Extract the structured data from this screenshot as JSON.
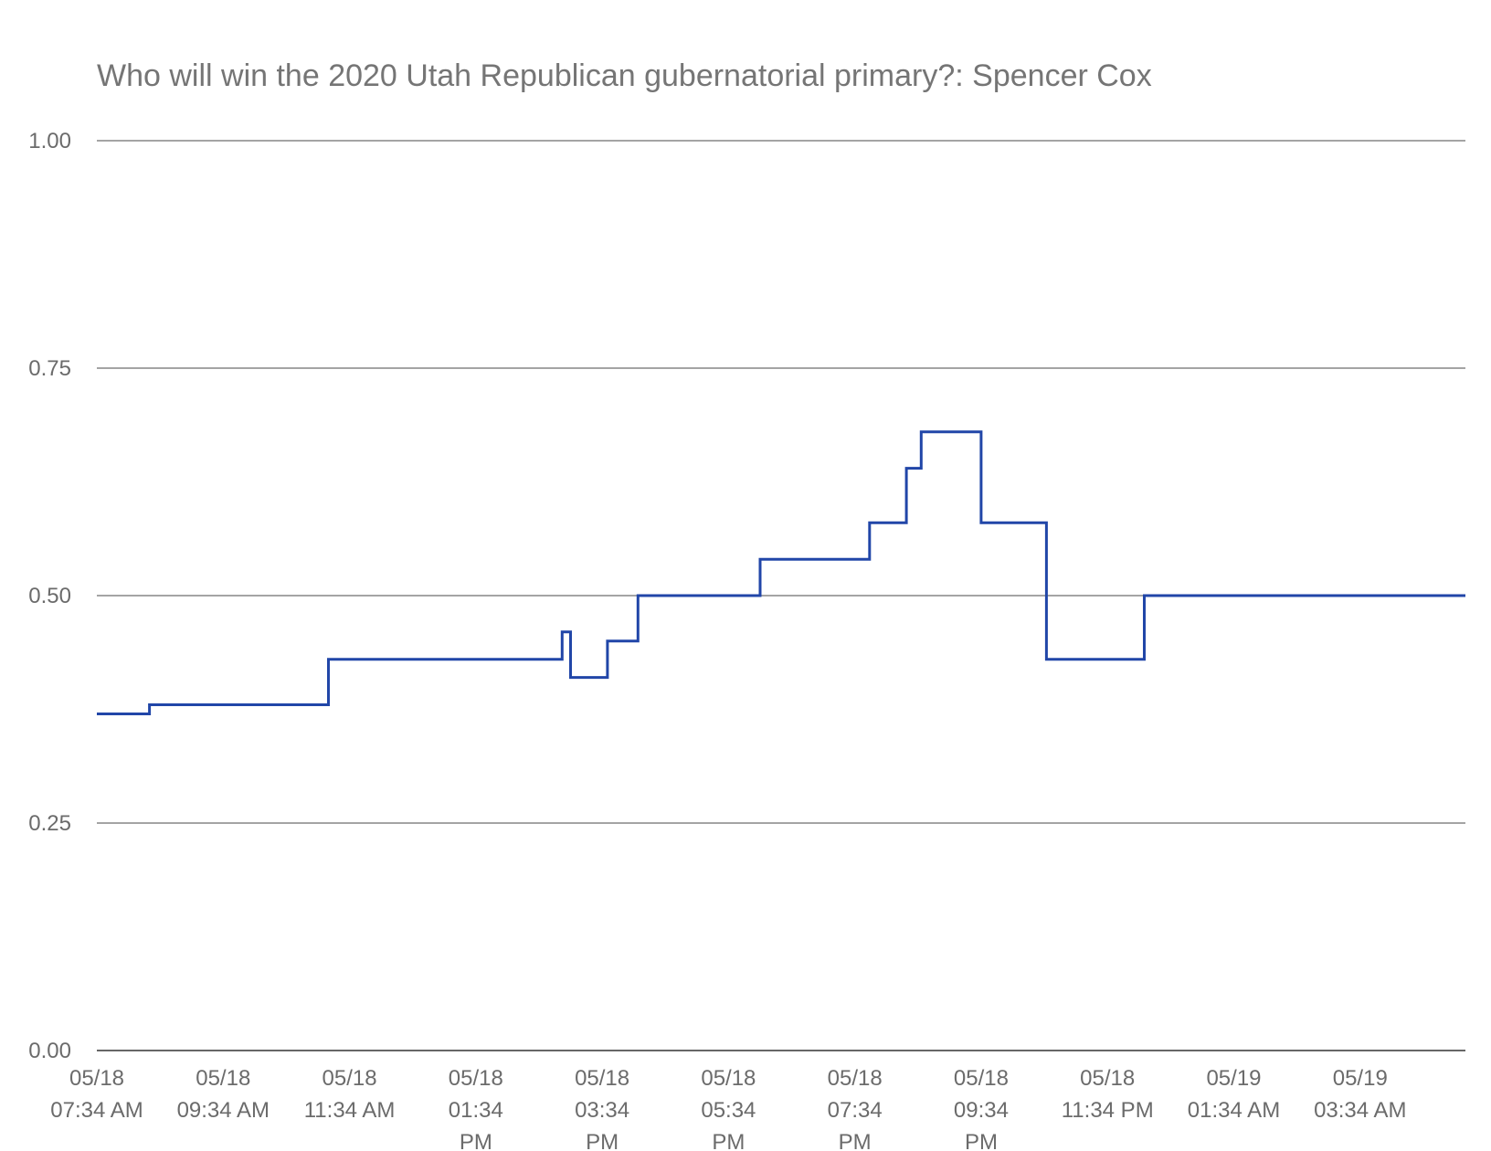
{
  "chart_data": {
    "type": "line",
    "title": "Who will win the 2020 Utah Republican gubernatorial primary?: Spencer Cox",
    "xlabel": "",
    "ylabel": "",
    "ylim": [
      0,
      1
    ],
    "grid": true,
    "legend": "none",
    "line_style": "step",
    "colors": {
      "series": "#2146a8",
      "grid": "#6e6e6e",
      "tick_text": "#6b6b6b",
      "title_text": "#757575"
    },
    "y_ticks": [
      {
        "value": 0.0,
        "label": "0.00"
      },
      {
        "value": 0.25,
        "label": "0.25"
      },
      {
        "value": 0.5,
        "label": "0.50"
      },
      {
        "value": 0.75,
        "label": "0.75"
      },
      {
        "value": 1.0,
        "label": "1.00"
      }
    ],
    "x_range": [
      "05/18 07:34",
      "05/19 05:14"
    ],
    "x_ticks": [
      {
        "time": "05/18 07:34",
        "lines": [
          "05/18",
          "07:34 AM"
        ]
      },
      {
        "time": "05/18 09:34",
        "lines": [
          "05/18",
          "09:34 AM"
        ]
      },
      {
        "time": "05/18 11:34",
        "lines": [
          "05/18",
          "11:34 AM"
        ]
      },
      {
        "time": "05/18 13:34",
        "lines": [
          "05/18",
          "01:34",
          "PM"
        ]
      },
      {
        "time": "05/18 15:34",
        "lines": [
          "05/18",
          "03:34",
          "PM"
        ]
      },
      {
        "time": "05/18 17:34",
        "lines": [
          "05/18",
          "05:34",
          "PM"
        ]
      },
      {
        "time": "05/18 19:34",
        "lines": [
          "05/18",
          "07:34",
          "PM"
        ]
      },
      {
        "time": "05/18 21:34",
        "lines": [
          "05/18",
          "09:34",
          "PM"
        ]
      },
      {
        "time": "05/18 23:34",
        "lines": [
          "05/18",
          "11:34 PM"
        ]
      },
      {
        "time": "05/19 01:34",
        "lines": [
          "05/19",
          "01:34 AM"
        ]
      },
      {
        "time": "05/19 03:34",
        "lines": [
          "05/19",
          "03:34 AM"
        ]
      }
    ],
    "series": [
      {
        "name": "Spencer Cox",
        "points": [
          {
            "x": "05/18 07:34",
            "y": 0.37
          },
          {
            "x": "05/18 08:24",
            "y": 0.38
          },
          {
            "x": "05/18 11:14",
            "y": 0.43
          },
          {
            "x": "05/18 14:56",
            "y": 0.46
          },
          {
            "x": "05/18 15:04",
            "y": 0.41
          },
          {
            "x": "05/18 15:39",
            "y": 0.45
          },
          {
            "x": "05/18 16:08",
            "y": 0.5
          },
          {
            "x": "05/18 18:04",
            "y": 0.54
          },
          {
            "x": "05/18 19:48",
            "y": 0.58
          },
          {
            "x": "05/18 20:23",
            "y": 0.64
          },
          {
            "x": "05/18 20:37",
            "y": 0.68
          },
          {
            "x": "05/18 21:34",
            "y": 0.58
          },
          {
            "x": "05/18 22:36",
            "y": 0.43
          },
          {
            "x": "05/19 00:09",
            "y": 0.5
          },
          {
            "x": "05/19 05:14",
            "y": 0.5
          }
        ]
      }
    ]
  }
}
